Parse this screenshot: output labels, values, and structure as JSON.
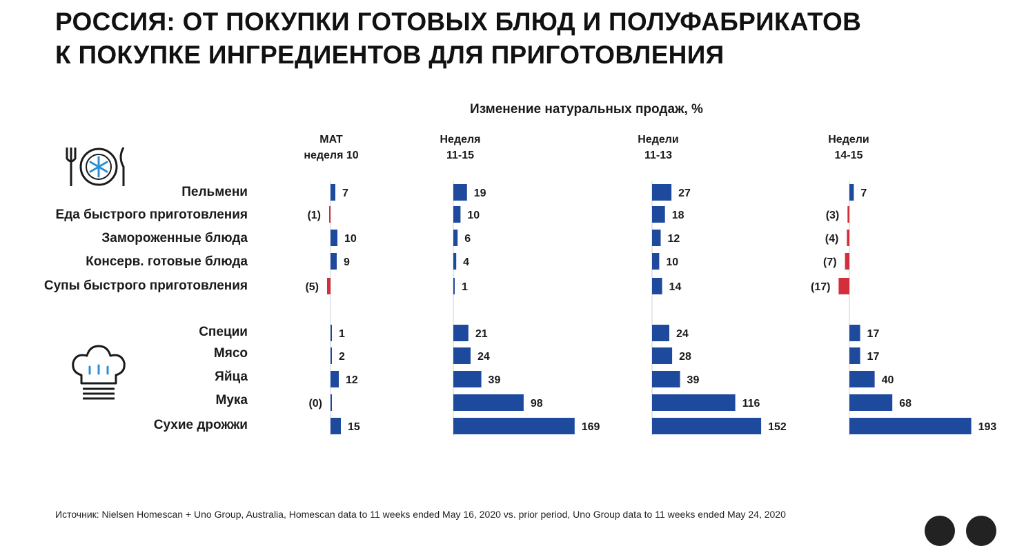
{
  "title_lines": [
    "РОССИЯ: ОТ ПОКУПКИ ГОТОВЫХ БЛЮД И ПОЛУФАБРИКАТОВ",
    "К ПОКУПКЕ ИНГРЕДИЕНТОВ ДЛЯ ПРИГОТОВЛЕНИЯ"
  ],
  "icons": {
    "group1": "plate-with-snowflake-icon",
    "group2": "chef-hat-icon"
  },
  "colors": {
    "positive": "#1e4a9e",
    "negative": "#d32f3a"
  },
  "source": "Источник: Nielsen Homescan + Uno Group, Australia, Homescan data to 11 weeks ended May 16, 2020 vs. prior period, Uno Group data to 11 weeks ended May 24, 2020",
  "chart_data": {
    "type": "bar",
    "orientation": "horizontal",
    "title": "Изменение натуральных продаж, %",
    "categories": [
      "Пельмени",
      "Еда быстрого приготовления",
      "Замороженные блюда",
      "Консерв. готовые блюда",
      "Супы быстрого приготовления",
      "Специи",
      "Мясо",
      "Яйца",
      "Мука",
      "Сухие дрожжи"
    ],
    "series": [
      {
        "name": "MAT неделя 10",
        "header_lines": [
          "MAT",
          "неделя 10"
        ],
        "values": [
          7,
          -1,
          10,
          9,
          -5,
          1,
          2,
          12,
          0,
          15
        ],
        "labels": [
          "7",
          "(1)",
          "10",
          "9",
          "(5)",
          "1",
          "2",
          "12",
          "(0)",
          "15"
        ]
      },
      {
        "name": "Неделя 11-15",
        "header_lines": [
          "Неделя",
          "11-15"
        ],
        "values": [
          19,
          10,
          6,
          4,
          1,
          21,
          24,
          39,
          98,
          169
        ],
        "labels": [
          "19",
          "10",
          "6",
          "4",
          "1",
          "21",
          "24",
          "39",
          "98",
          "169"
        ]
      },
      {
        "name": "Недели 11-13",
        "header_lines": [
          "Недели",
          "11-13"
        ],
        "values": [
          27,
          18,
          12,
          10,
          14,
          24,
          28,
          39,
          116,
          152
        ],
        "labels": [
          "27",
          "18",
          "12",
          "10",
          "14",
          "24",
          "28",
          "39",
          "116",
          "152"
        ]
      },
      {
        "name": "Недели 14-15",
        "header_lines": [
          "Недели",
          "14-15"
        ],
        "values": [
          7,
          -3,
          -4,
          -7,
          -17,
          17,
          17,
          40,
          68,
          193
        ],
        "labels": [
          "7",
          "(3)",
          "(4)",
          "(7)",
          "(17)",
          "17",
          "17",
          "40",
          "68",
          "193"
        ]
      }
    ]
  }
}
